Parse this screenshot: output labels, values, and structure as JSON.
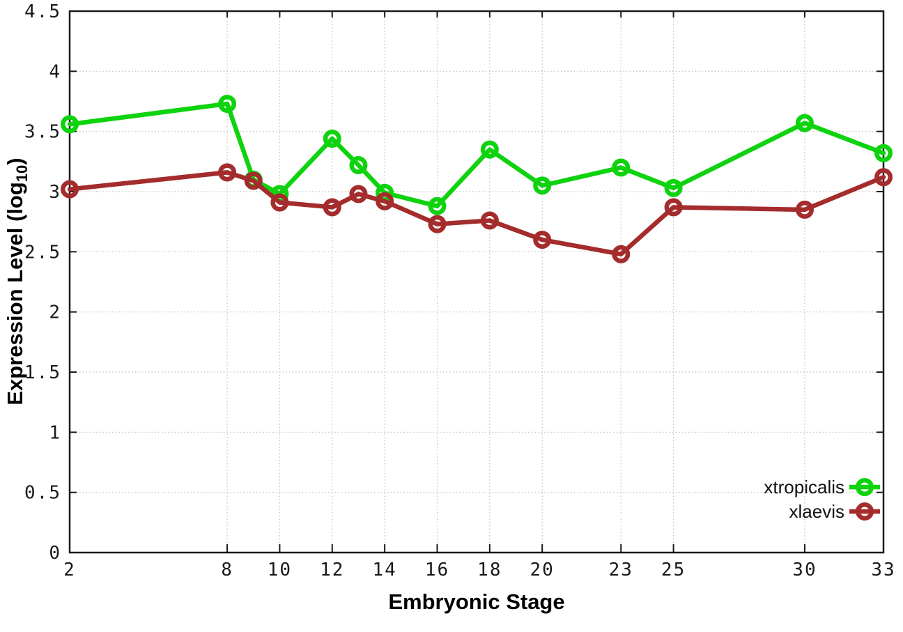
{
  "page": {
    "background": "#ffffff"
  },
  "chart_data": {
    "type": "line",
    "title": "",
    "xlabel": "Embryonic Stage",
    "ylabel": "Expression Level (log10)",
    "ylabel_main": "Expression Level (log",
    "ylabel_sub": "10",
    "ylabel_close": ")",
    "xlim": [
      2,
      33
    ],
    "ylim": [
      0,
      4.5
    ],
    "x_ticks": [
      2,
      8,
      10,
      12,
      14,
      16,
      18,
      20,
      23,
      25,
      30,
      33
    ],
    "y_ticks": [
      0,
      0.5,
      1,
      1.5,
      2,
      2.5,
      3,
      3.5,
      4,
      4.5
    ],
    "grid": true,
    "grid_color": "#bdbdbd",
    "border_color": "#1a1a1a",
    "marker": "open-circle",
    "legend_position": "bottom-right-inside",
    "x": [
      2,
      8,
      9,
      10,
      12,
      13,
      14,
      16,
      18,
      20,
      23,
      25,
      30,
      33
    ],
    "series": [
      {
        "name": "xtropicalis",
        "color": "#0ed30e",
        "values": [
          3.56,
          3.73,
          3.1,
          2.98,
          3.44,
          3.22,
          2.99,
          2.88,
          3.35,
          3.05,
          3.2,
          3.03,
          3.57,
          3.32
        ]
      },
      {
        "name": "xlaevis",
        "color": "#a42c2c",
        "values": [
          3.02,
          3.16,
          3.09,
          2.91,
          2.87,
          2.98,
          2.92,
          2.73,
          2.76,
          2.6,
          2.48,
          2.87,
          2.85,
          3.12
        ]
      }
    ]
  }
}
